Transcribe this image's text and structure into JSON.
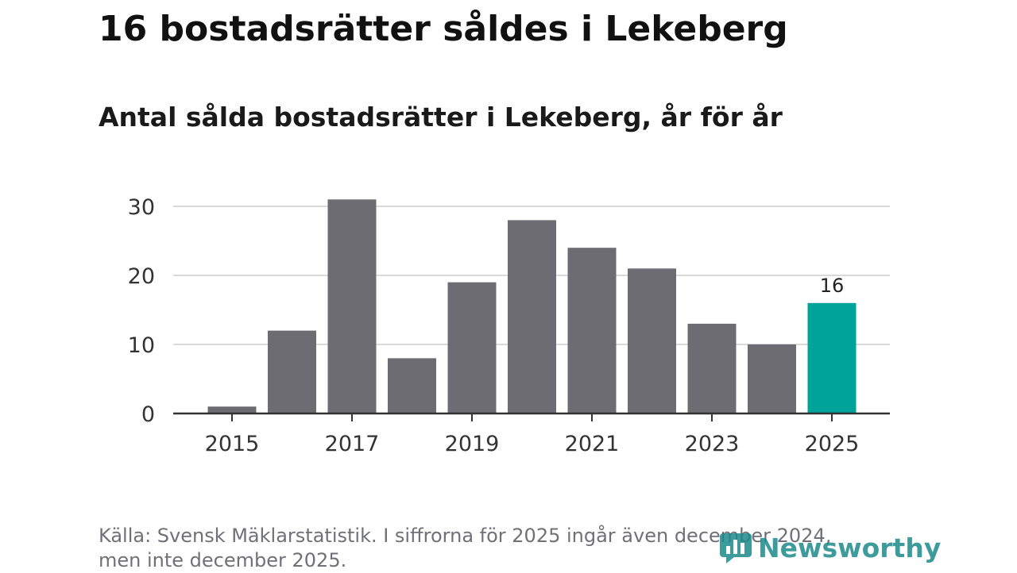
{
  "title": "16 bostadsrätter såldes i Lekeberg",
  "subtitle": "Antal sålda bostadsrätter i Lekeberg, år för år",
  "source_line1": "Källa: Svensk Mäklarstatistik. I siffrorna för 2025 ingår även december 2024,",
  "source_line2": "men inte december 2025.",
  "brand": "Newsworthy",
  "colors": {
    "bar": "#6d6c73",
    "highlight": "#00a39a",
    "grid": "#d9d9d9",
    "axis": "#333333",
    "brand": "#1d8a8a"
  },
  "chart_data": {
    "type": "bar",
    "title": "Antal sålda bostadsrätter i Lekeberg, år för år",
    "x": [
      2015,
      2016,
      2017,
      2018,
      2019,
      2020,
      2021,
      2022,
      2023,
      2024,
      2025
    ],
    "values": [
      1,
      12,
      31,
      8,
      19,
      28,
      24,
      21,
      13,
      10,
      16
    ],
    "highlight_index": 10,
    "highlight_label": "16",
    "xticks": [
      "2015",
      "2017",
      "2019",
      "2021",
      "2023",
      "2025"
    ],
    "yticks": [
      "0",
      "10",
      "20",
      "30"
    ],
    "ylim": [
      0,
      31
    ],
    "xlabel": "",
    "ylabel": "",
    "grid": true
  }
}
